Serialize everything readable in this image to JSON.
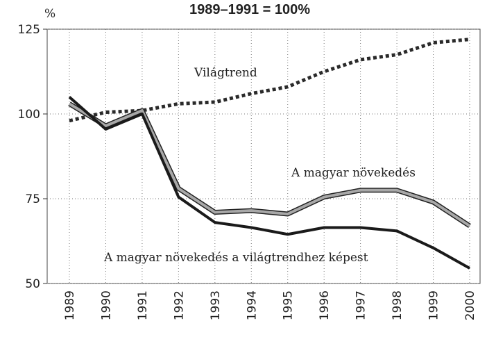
{
  "chart_data": {
    "type": "line",
    "title": "1989–1991 = 100%",
    "y_label": "%",
    "categories": [
      "1989",
      "1990",
      "1991",
      "1992",
      "1993",
      "1994",
      "1995",
      "1996",
      "1997",
      "1998",
      "1999",
      "2000"
    ],
    "ylim": [
      50,
      125
    ],
    "yticks": [
      50,
      75,
      100,
      125
    ],
    "grid": true,
    "series": [
      {
        "name": "Világtrend",
        "color": "#2a2a2a",
        "style": "dotted",
        "values": [
          98,
          100.5,
          101,
          103,
          103.5,
          106,
          108,
          112.5,
          116,
          117.5,
          121,
          122
        ]
      },
      {
        "name": "A magyar növekedés",
        "color": "#a8a8a8",
        "style": "outlined",
        "values": [
          103,
          96.5,
          101,
          78,
          71,
          71.5,
          70.5,
          75.5,
          77.5,
          77.5,
          74,
          67
        ]
      },
      {
        "name": "A magyar növekedés a világtrendhez képest",
        "color": "#1a1a1a",
        "style": "solid",
        "values": [
          105,
          95.5,
          100,
          75.5,
          68,
          66.5,
          64.5,
          66.5,
          66.5,
          65.5,
          60.5,
          54.5
        ]
      }
    ]
  }
}
